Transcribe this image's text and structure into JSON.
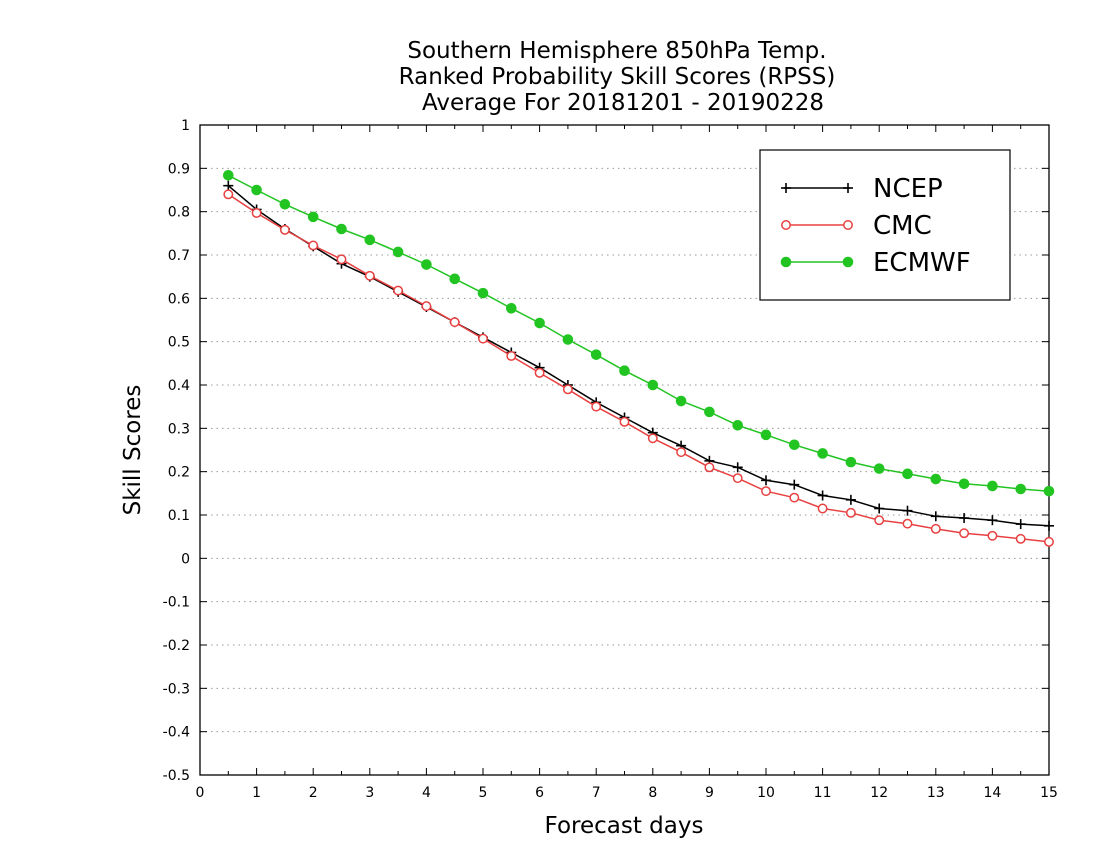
{
  "chart_data": {
    "type": "line",
    "title_lines": [
      "Southern Hemisphere 850hPa Temp.",
      "Ranked Probability Skill Scores (RPSS)",
      "Average For 20181201 - 20190228"
    ],
    "xlabel": "Forecast days",
    "ylabel": "Skill Scores",
    "xlim": [
      0,
      15
    ],
    "ylim": [
      -0.5,
      1
    ],
    "x_ticks": [
      0,
      1,
      2,
      3,
      4,
      5,
      6,
      7,
      8,
      9,
      10,
      11,
      12,
      13,
      14,
      15
    ],
    "y_ticks": [
      -0.5,
      -0.4,
      -0.3,
      -0.2,
      -0.1,
      0,
      0.1,
      0.2,
      0.3,
      0.4,
      0.5,
      0.6,
      0.7,
      0.8,
      0.9,
      1
    ],
    "y_tick_labels": [
      "-0.5",
      "-0.4",
      "-0.3",
      "-0.2",
      "-0.1",
      "0",
      "0.1",
      "0.2",
      "0.3",
      "0.4",
      "0.5",
      "0.6",
      "0.7",
      "0.8",
      "0.9",
      "1"
    ],
    "grid": "horizontal dotted",
    "legend_position": "top-right",
    "x": [
      0.5,
      1,
      1.5,
      2,
      2.5,
      3,
      3.5,
      4,
      4.5,
      5,
      5.5,
      6,
      6.5,
      7,
      7.5,
      8,
      8.5,
      9,
      9.5,
      10,
      10.5,
      11,
      11.5,
      12,
      12.5,
      13,
      13.5,
      14,
      14.5,
      15
    ],
    "series": [
      {
        "name": "NCEP",
        "color": "#000000",
        "marker": "plus",
        "values": [
          0.86,
          0.805,
          0.76,
          0.72,
          0.68,
          0.65,
          0.615,
          0.58,
          0.545,
          0.51,
          0.475,
          0.44,
          0.4,
          0.36,
          0.325,
          0.29,
          0.26,
          0.225,
          0.21,
          0.18,
          0.17,
          0.145,
          0.135,
          0.115,
          0.11,
          0.097,
          0.093,
          0.088,
          0.079,
          0.075
        ]
      },
      {
        "name": "CMC",
        "color": "#e84040",
        "marker": "open-circle",
        "values": [
          0.84,
          0.797,
          0.758,
          0.722,
          0.69,
          0.652,
          0.618,
          0.582,
          0.545,
          0.507,
          0.467,
          0.428,
          0.39,
          0.35,
          0.315,
          0.277,
          0.245,
          0.21,
          0.185,
          0.155,
          0.14,
          0.115,
          0.105,
          0.088,
          0.08,
          0.068,
          0.058,
          0.052,
          0.045,
          0.038
        ]
      },
      {
        "name": "ECMWF",
        "color": "#22c422",
        "marker": "filled-circle",
        "values": [
          0.884,
          0.85,
          0.817,
          0.788,
          0.76,
          0.735,
          0.707,
          0.678,
          0.645,
          0.612,
          0.577,
          0.543,
          0.505,
          0.47,
          0.433,
          0.4,
          0.363,
          0.338,
          0.307,
          0.285,
          0.262,
          0.242,
          0.222,
          0.207,
          0.195,
          0.183,
          0.172,
          0.167,
          0.16,
          0.155
        ]
      }
    ]
  }
}
